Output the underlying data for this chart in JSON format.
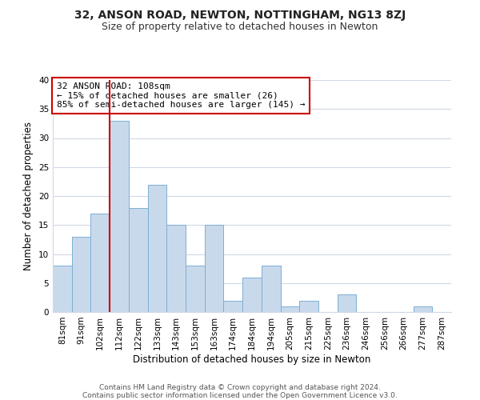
{
  "title": "32, ANSON ROAD, NEWTON, NOTTINGHAM, NG13 8ZJ",
  "subtitle": "Size of property relative to detached houses in Newton",
  "xlabel": "Distribution of detached houses by size in Newton",
  "ylabel": "Number of detached properties",
  "bin_labels": [
    "81sqm",
    "91sqm",
    "102sqm",
    "112sqm",
    "122sqm",
    "133sqm",
    "143sqm",
    "153sqm",
    "163sqm",
    "174sqm",
    "184sqm",
    "194sqm",
    "205sqm",
    "215sqm",
    "225sqm",
    "236sqm",
    "246sqm",
    "256sqm",
    "266sqm",
    "277sqm",
    "287sqm"
  ],
  "bar_heights": [
    8,
    13,
    17,
    33,
    18,
    22,
    15,
    8,
    15,
    2,
    6,
    8,
    1,
    2,
    0,
    3,
    0,
    0,
    0,
    1,
    0
  ],
  "bar_color": "#c9d9ec",
  "bar_edge_color": "#7bafd4",
  "vline_color": "#cc0000",
  "vline_x": 2.5,
  "annotation_text": "32 ANSON ROAD: 108sqm\n← 15% of detached houses are smaller (26)\n85% of semi-detached houses are larger (145) →",
  "annotation_box_color": "#cc0000",
  "ylim": [
    0,
    40
  ],
  "yticks": [
    0,
    5,
    10,
    15,
    20,
    25,
    30,
    35,
    40
  ],
  "footer_line1": "Contains HM Land Registry data © Crown copyright and database right 2024.",
  "footer_line2": "Contains public sector information licensed under the Open Government Licence v3.0.",
  "background_color": "#ffffff",
  "grid_color": "#d0d8e8",
  "title_fontsize": 10,
  "subtitle_fontsize": 9,
  "axis_label_fontsize": 8.5,
  "tick_fontsize": 7.5
}
